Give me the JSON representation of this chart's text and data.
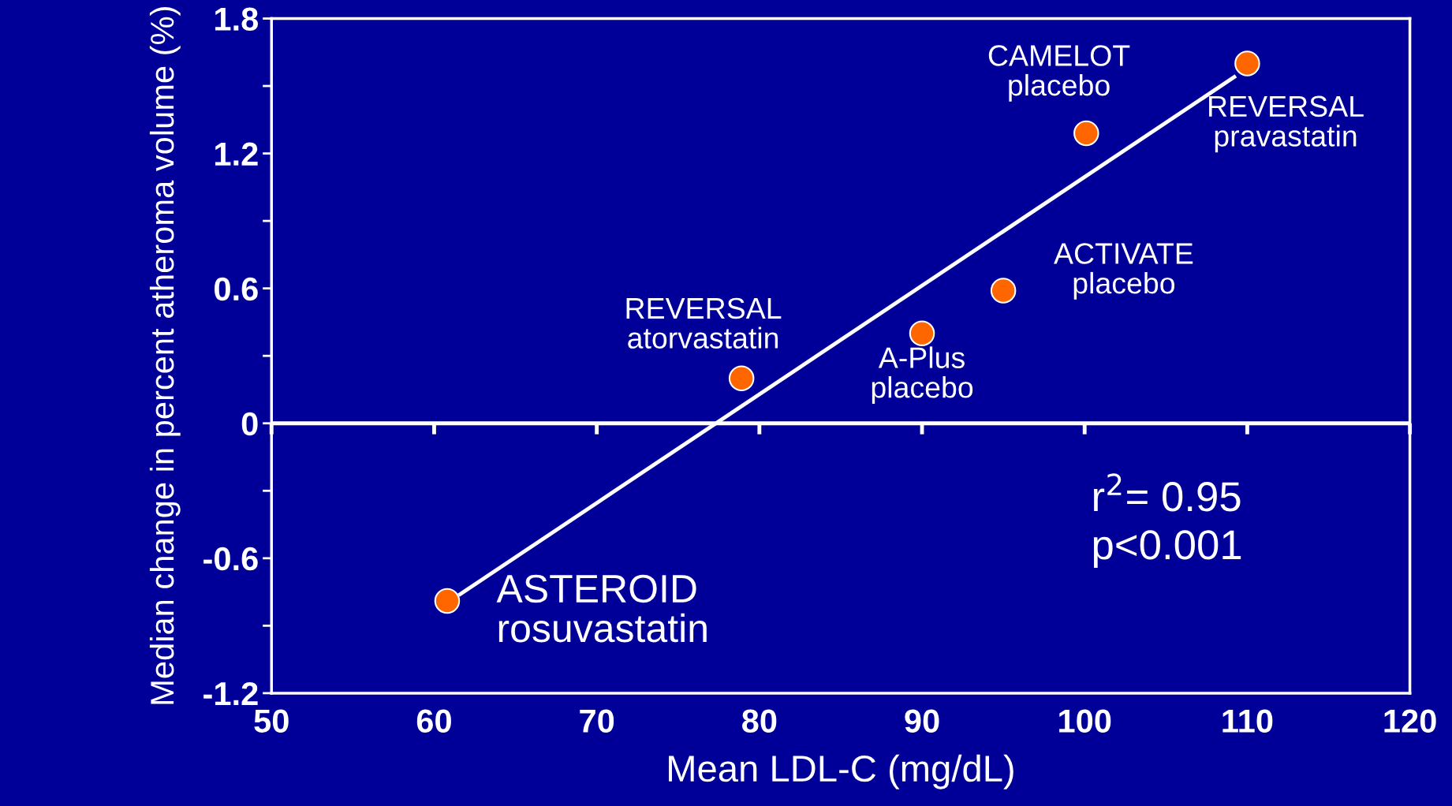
{
  "chart_data": {
    "type": "scatter",
    "xlabel": "Mean LDL-C (mg/dL)",
    "ylabel": "Median change in percent atheroma volume (%)",
    "series": [
      {
        "color": "#ff6600",
        "marker": "circle",
        "x": [
          60.8,
          78.9,
          90.0,
          95.0,
          100.1,
          110.0
        ],
        "values": [
          -0.79,
          0.2,
          0.4,
          0.59,
          1.29,
          1.6
        ]
      },
      {
        "type": "line",
        "color": "#ffffff",
        "x": [
          61.6,
          109.2
        ],
        "values": [
          -0.76,
          1.54
        ]
      }
    ],
    "xlim": [
      50,
      120
    ],
    "xticks": [
      50,
      60,
      70,
      80,
      90,
      100,
      110,
      120
    ],
    "ylim": [
      -1.2,
      1.8
    ],
    "yticks": [
      -1.2,
      {
        "value": -0.9,
        "label": null
      },
      -0.6,
      {
        "value": -0.3,
        "label": null
      },
      0,
      {
        "value": 0.3,
        "label": null
      },
      0.6,
      {
        "value": 0.9,
        "label": null
      },
      1.2,
      {
        "value": 1.5,
        "label": null
      },
      1.8
    ],
    "ref_lines": [
      {
        "axis": "y",
        "value": 0,
        "color": "#ffffff"
      }
    ],
    "annotations": [
      {
        "text": "ASTEROID\nrosuvastatin",
        "x": 60.8,
        "y": -0.79
      },
      {
        "text": "REVERSAL\natorvastatin",
        "x": 78.9,
        "y": 0.2
      },
      {
        "text": "A-Plus\nplacebo",
        "x": 90.0,
        "y": 0.4
      },
      {
        "text": "ACTIVATE\nplacebo",
        "x": 95.0,
        "y": 0.59
      },
      {
        "text": "CAMELOT\nplacebo",
        "x": 100.1,
        "y": 1.29
      },
      {
        "text": "REVERSAL\npravastatin",
        "x": 110.0,
        "y": 1.6
      },
      "r$^{2}$= 0.95\np<0.001"
    ],
    "grid": false,
    "legend": false
  }
}
